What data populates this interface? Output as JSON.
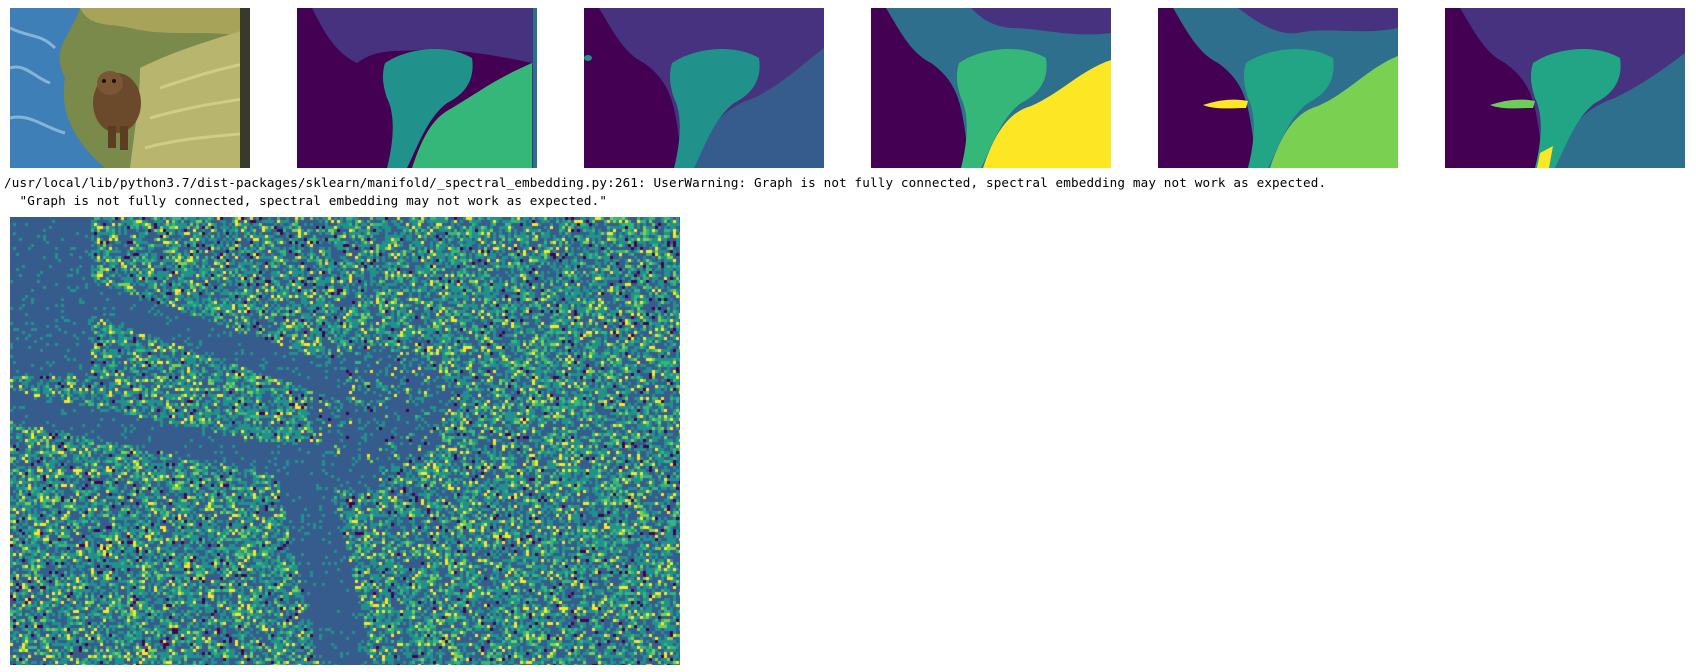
{
  "output": {
    "warning_line": "/usr/local/lib/python3.7/dist-packages/sklearn/manifold/_spectral_embedding.py:261: UserWarning: Graph is not fully connected, spectral embedding may not work as expected.",
    "warning_code": "  \"Graph is not fully connected, spectral embedding may not work as expected.\""
  },
  "colors": {
    "viridis_purple": "#440154",
    "viridis_indigo": "#46327e",
    "viridis_blue": "#365c8d",
    "viridis_slate": "#2e6f8e",
    "viridis_teal": "#21918c",
    "viridis_green": "#35b779",
    "viridis_lime": "#7ad151",
    "viridis_yellow": "#fde725"
  },
  "figures": [
    {
      "name": "original-bear-photo"
    },
    {
      "name": "segmentation-k4"
    },
    {
      "name": "segmentation-k5"
    },
    {
      "name": "segmentation-k6"
    },
    {
      "name": "segmentation-k7"
    },
    {
      "name": "segmentation-k8"
    },
    {
      "name": "spectral-embedding-noise-map"
    }
  ]
}
